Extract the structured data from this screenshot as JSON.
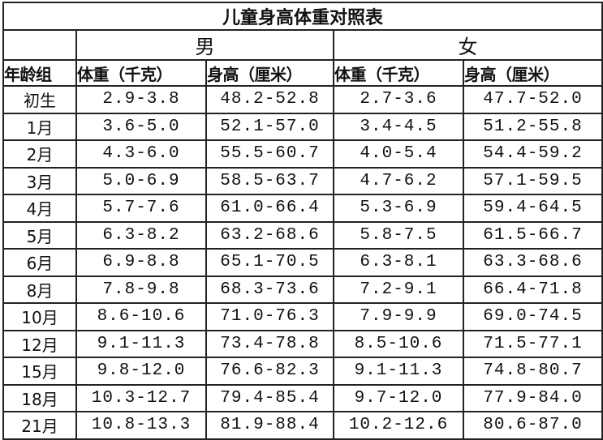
{
  "title": "儿童身高体重对照表",
  "genders": {
    "male": "男",
    "female": "女"
  },
  "headers": [
    "年龄组",
    "体重（千克）",
    "身高（厘米）",
    "体重（千克）",
    "身高（厘米）"
  ],
  "rows": [
    [
      "初生",
      "2.9-3.8",
      "48.2-52.8",
      "2.7-3.6",
      "47.7-52.0"
    ],
    [
      "1月",
      "3.6-5.0",
      "52.1-57.0",
      "3.4-4.5",
      "51.2-55.8"
    ],
    [
      "2月",
      "4.3-6.0",
      "55.5-60.7",
      "4.0-5.4",
      "54.4-59.2"
    ],
    [
      "3月",
      "5.0-6.9",
      "58.5-63.7",
      "4.7-6.2",
      "57.1-59.5"
    ],
    [
      "4月",
      "5.7-7.6",
      "61.0-66.4",
      "5.3-6.9",
      "59.4-64.5"
    ],
    [
      "5月",
      "6.3-8.2",
      "63.2-68.6",
      "5.8-7.5",
      "61.5-66.7"
    ],
    [
      "6月",
      "6.9-8.8",
      "65.1-70.5",
      "6.3-8.1",
      "63.3-68.6"
    ],
    [
      "8月",
      "7.8-9.8",
      "68.3-73.6",
      "7.2-9.1",
      "66.4-71.8"
    ],
    [
      "10月",
      "8.6-10.6",
      "71.0-76.3",
      "7.9-9.9",
      "69.0-74.5"
    ],
    [
      "12月",
      "9.1-11.3",
      "73.4-78.8",
      "8.5-10.6",
      "71.5-77.1"
    ],
    [
      "15月",
      "9.8-12.0",
      "76.6-82.3",
      "9.1-11.3",
      "74.8-80.7"
    ],
    [
      "18月",
      "10.3-12.7",
      "79.4-85.4",
      "9.7-12.0",
      "77.9-84.0"
    ],
    [
      "21月",
      "10.8-13.3",
      "81.9-88.4",
      "10.2-12.6",
      "80.6-87.0"
    ]
  ]
}
